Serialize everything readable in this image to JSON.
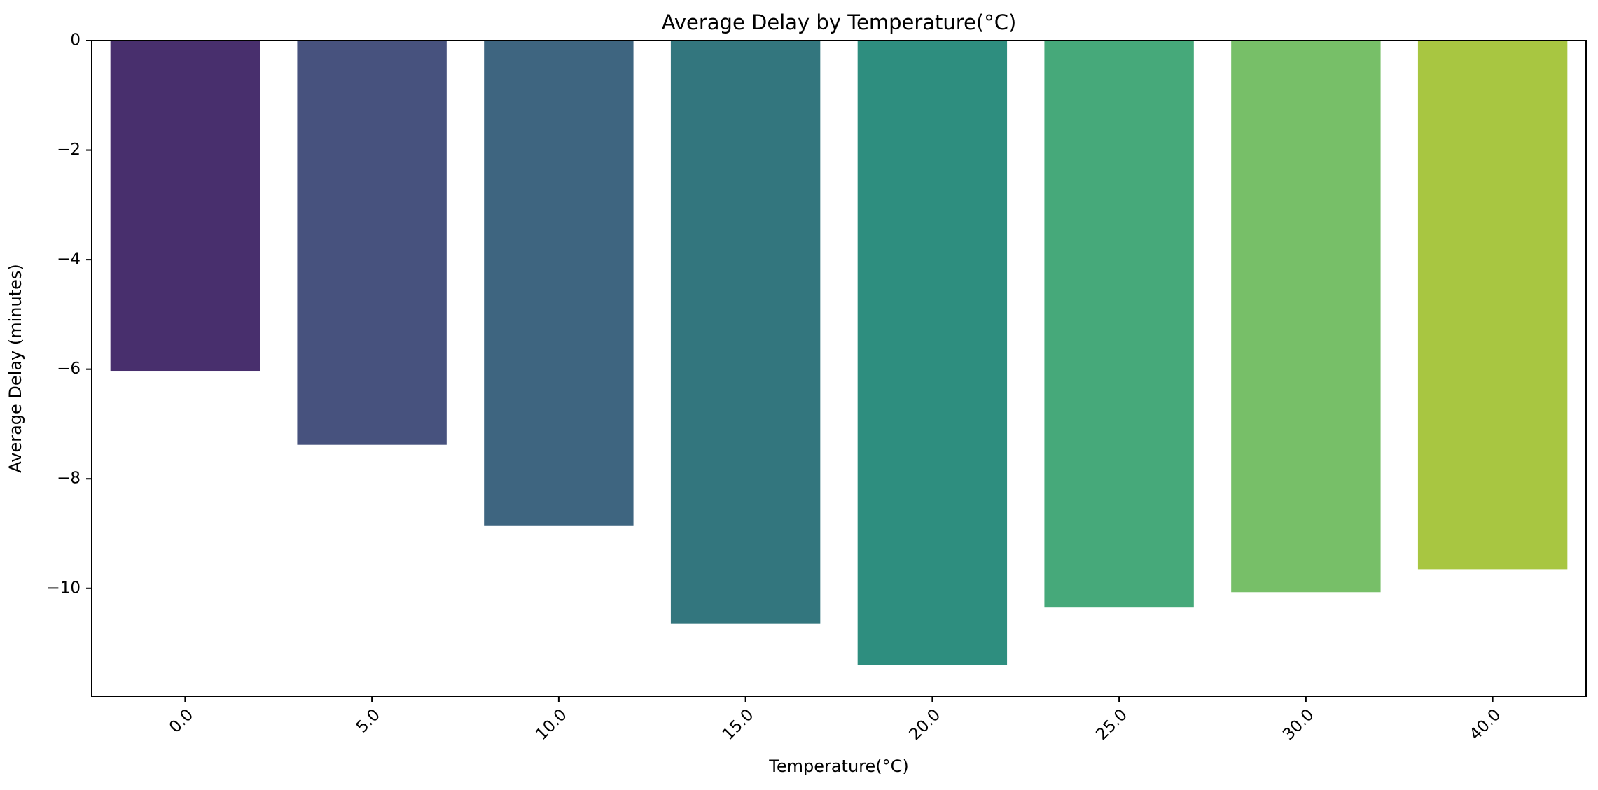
{
  "chart_data": {
    "type": "bar",
    "title": "Average Delay by Temperature(°C)",
    "xlabel": "Temperature(°C)",
    "ylabel": "Average Delay (minutes)",
    "categories": [
      "0.0",
      "5.0",
      "10.0",
      "15.0",
      "20.0",
      "25.0",
      "30.0",
      "40.0"
    ],
    "values": [
      -6.03,
      -7.38,
      -8.85,
      -10.65,
      -11.4,
      -10.35,
      -10.07,
      -9.65
    ],
    "colors": [
      "#482f6d",
      "#47527e",
      "#3e6580",
      "#33767e",
      "#2e8e7f",
      "#46a97a",
      "#77bf68",
      "#a8c641"
    ],
    "yticks": [
      "0",
      "−2",
      "−4",
      "−6",
      "−8",
      "−10"
    ],
    "ytick_values": [
      0,
      -2,
      -4,
      -6,
      -8,
      -10
    ],
    "ylim": [
      -11.97,
      0
    ],
    "grid": false,
    "legend": "none"
  }
}
